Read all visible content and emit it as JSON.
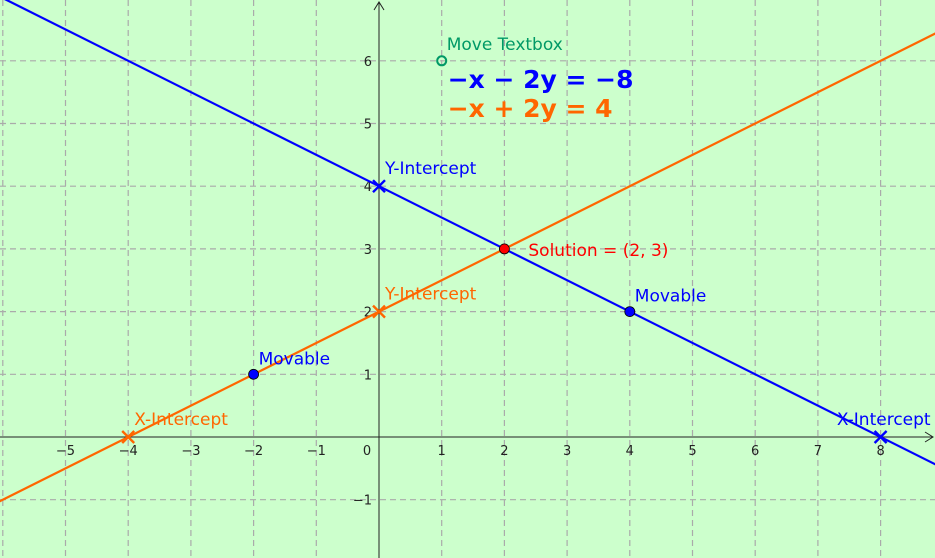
{
  "chart_data": {
    "type": "line",
    "xlim": [
      -6,
      8.9
    ],
    "ylim": [
      -1.9,
      7
    ],
    "grid": true,
    "x_ticks": [
      -5,
      -4,
      -3,
      -2,
      -1,
      0,
      1,
      2,
      3,
      4,
      5,
      6,
      7,
      8
    ],
    "y_ticks": [
      -1,
      1,
      2,
      3,
      4,
      5,
      6
    ],
    "series": [
      {
        "equation": "−x − 2y = −8",
        "color": "#0000ff",
        "slope": -0.5,
        "intercept": 4,
        "points": [
          {
            "x": 0,
            "y": 4,
            "label": "Y-Intercept",
            "marker": "cross"
          },
          {
            "x": 8,
            "y": 0,
            "label": "X-Intercept",
            "marker": "cross"
          },
          {
            "x": 4,
            "y": 2,
            "label": "Movable",
            "marker": "dot"
          }
        ]
      },
      {
        "equation": "−x + 2y = 4",
        "color": "#ff6600",
        "slope": 0.5,
        "intercept": 2,
        "points": [
          {
            "x": 0,
            "y": 2,
            "label": "Y-Intercept",
            "marker": "cross"
          },
          {
            "x": -4,
            "y": 0,
            "label": "X-Intercept",
            "marker": "cross"
          },
          {
            "x": -2,
            "y": 1,
            "label": "Movable",
            "marker": "dot",
            "dot_color": "#0000ff",
            "label_color": "#0000ff"
          }
        ]
      }
    ],
    "solution": {
      "x": 2,
      "y": 3,
      "label": "Solution = (2, 3)",
      "color": "#ff0000"
    },
    "textbox_handle": {
      "x": 1,
      "y": 6,
      "label": "Move Textbox",
      "color": "#009966"
    }
  }
}
